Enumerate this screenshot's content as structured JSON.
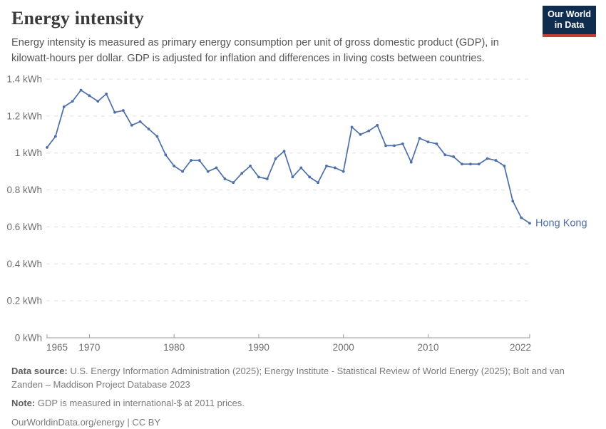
{
  "header": {
    "title": "Energy intensity",
    "subtitle": "Energy intensity is measured as primary energy consumption per unit of gross domestic product (GDP), in kilowatt-hours per dollar. GDP is adjusted for inflation and differences in living costs between countries.",
    "logo_line1": "Our World",
    "logo_line2": "in Data"
  },
  "chart_data": {
    "type": "line",
    "title": "Energy intensity",
    "unit": "kWh per dollar",
    "xlim": [
      1965,
      2022
    ],
    "ylim": [
      0,
      1.4
    ],
    "grid": "horizontal-dashed",
    "legend_position": "end-of-line-label",
    "x_ticks": [
      1965,
      1970,
      1980,
      1990,
      2000,
      2010,
      2022
    ],
    "y_ticks": [
      {
        "value": 0,
        "label": "0 kWh"
      },
      {
        "value": 0.2,
        "label": "0.2 kWh"
      },
      {
        "value": 0.4,
        "label": "0.4 kWh"
      },
      {
        "value": 0.6,
        "label": "0.6 kWh"
      },
      {
        "value": 0.8,
        "label": "0.8 kWh"
      },
      {
        "value": 1,
        "label": "1 kWh"
      },
      {
        "value": 1.2,
        "label": "1.2 kWh"
      },
      {
        "value": 1.4,
        "label": "1.4 kWh"
      }
    ],
    "series": [
      {
        "name": "Hong Kong",
        "color": "#4C6EA9",
        "x": [
          1965,
          1966,
          1967,
          1968,
          1969,
          1970,
          1971,
          1972,
          1973,
          1974,
          1975,
          1976,
          1977,
          1978,
          1979,
          1980,
          1981,
          1982,
          1983,
          1984,
          1985,
          1986,
          1987,
          1988,
          1989,
          1990,
          1991,
          1992,
          1993,
          1994,
          1995,
          1996,
          1997,
          1998,
          1999,
          2000,
          2001,
          2002,
          2003,
          2004,
          2005,
          2006,
          2007,
          2008,
          2009,
          2010,
          2011,
          2012,
          2013,
          2014,
          2015,
          2016,
          2017,
          2018,
          2019,
          2020,
          2021,
          2022
        ],
        "values": [
          1.03,
          1.09,
          1.25,
          1.28,
          1.34,
          1.31,
          1.28,
          1.32,
          1.22,
          1.23,
          1.15,
          1.17,
          1.13,
          1.09,
          0.99,
          0.93,
          0.9,
          0.96,
          0.96,
          0.9,
          0.92,
          0.86,
          0.84,
          0.89,
          0.93,
          0.87,
          0.86,
          0.97,
          1.01,
          0.87,
          0.92,
          0.87,
          0.84,
          0.93,
          0.92,
          0.9,
          1.14,
          1.1,
          1.12,
          1.15,
          1.04,
          1.04,
          1.05,
          0.95,
          1.08,
          1.06,
          1.05,
          0.99,
          0.98,
          0.94,
          0.94,
          0.94,
          0.97,
          0.96,
          0.93,
          0.74,
          0.65,
          0.62
        ]
      }
    ]
  },
  "footer": {
    "data_source_label": "Data source:",
    "data_source": "U.S. Energy Information Administration (2025); Energy Institute - Statistical Review of World Energy (2025); Bolt and van Zanden – Maddison Project Database 2023",
    "note_label": "Note:",
    "note": "GDP is measured in international-$ at 2011 prices.",
    "citation": "OurWorldinData.org/energy | CC BY"
  },
  "colors": {
    "line": "#4C6EA9",
    "grid": "#dedede",
    "axis": "#9a9a9a",
    "tick_label": "#6e6e6e",
    "logo_navy": "#102d50",
    "logo_red": "#c43e38"
  }
}
